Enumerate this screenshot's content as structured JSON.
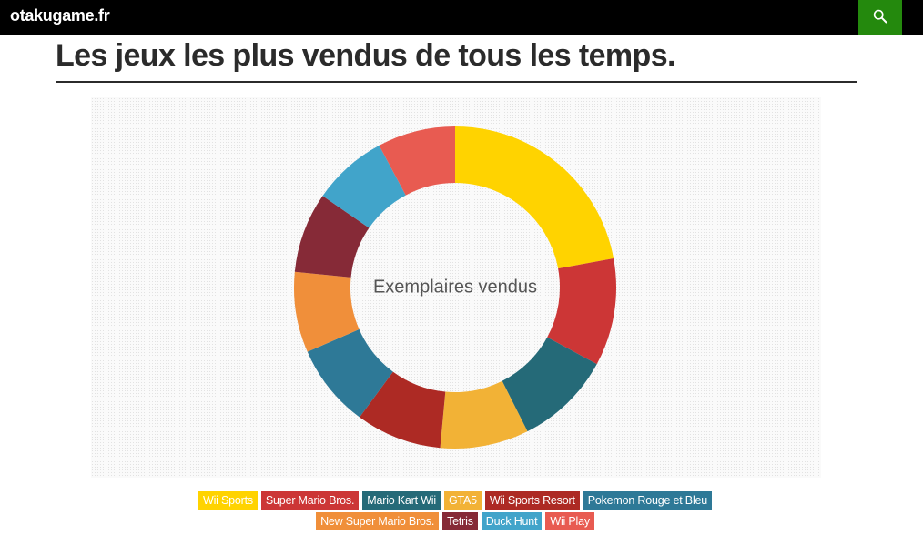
{
  "header": {
    "site_name": "otakugame.fr",
    "search_icon": "search-icon",
    "background_color": "#000000",
    "search_button_color": "#24890d"
  },
  "page": {
    "title": "Les jeux les plus vendus de tous les temps."
  },
  "chart_data": {
    "type": "pie",
    "donut": true,
    "center_label": "Exemplaires vendus",
    "categories": [
      "Wii Sports",
      "Super Mario Bros.",
      "Mario Kart Wii",
      "GTA5",
      "Wii Sports Resort",
      "Pokemon Rouge et Bleu",
      "New Super Mario Bros.",
      "Tetris",
      "Duck Hunt",
      "Wii Play"
    ],
    "values": [
      82,
      40,
      36,
      33,
      32,
      31,
      30,
      30,
      28,
      29
    ],
    "colors": [
      "#FFD300",
      "#CC3636",
      "#256A78",
      "#F2B236",
      "#AD2A24",
      "#2E7997",
      "#F08F3A",
      "#862A37",
      "#41A4CA",
      "#E85B51"
    ],
    "legend_position": "bottom"
  }
}
